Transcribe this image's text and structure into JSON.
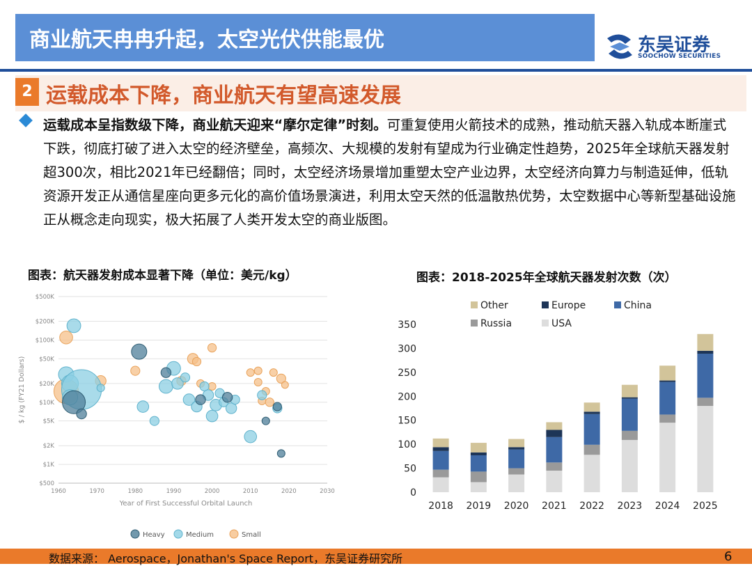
{
  "header": {
    "title": "商业航天冉冉升起，太空光伏供能最优",
    "logo_cn": "东吴证券",
    "logo_en": "SOOCHOW SECURITIES"
  },
  "section": {
    "number": "2",
    "title": "运载成本下降，商业航天有望高速发展"
  },
  "paragraph": {
    "lead": "运载成本呈指数级下降，商业航天迎来“摩尔定律”时刻。",
    "body": "可重复使用火箭技术的成熟，推动航天器入轨成本断崖式下跌，彻底打破了进入太空的经济壁垒，高频次、大规模的发射有望成为行业确定性趋势，2025年全球航天器发射超300次，相比2021年已经翻倍；同时，太空经济场景增加重塑太空产业边界，太空经济向算力与制造延伸，低轨资源开发正从通信星座向更多元化的高价值场景演进，利用太空天然的低温散热优势，太空数据中心等新型基础设施正从概念走向现实，极大拓展了人类开发太空的商业版图。"
  },
  "captions": {
    "left": "图表：航天器发射成本显著下降（单位：美元/kg）",
    "right": "图表：2018-2025年全球航天器发射次数（次）"
  },
  "footer": {
    "source": "数据来源： Aerospace，Jonathan's Space Report，东吴证券研究所",
    "page": "6"
  },
  "colors": {
    "banner": "#5b8fd6",
    "accent_orange": "#ea7a2a",
    "heavy": "#4f7f99",
    "medium": "#8ccfe3",
    "small": "#f6c08a",
    "europe": "#1d3557",
    "china": "#3e69a6",
    "russia": "#9a9a9a",
    "usa": "#dddddd",
    "other": "#d2c49a"
  },
  "chart_data": [
    {
      "type": "scatter",
      "title": "",
      "xlabel": "Year of First Successful Orbital Launch",
      "ylabel": "$ / kg (FY21 Dollars)",
      "x_ticks": [
        "1960",
        "1970",
        "1980",
        "1990",
        "2000",
        "2010",
        "2020",
        "2030"
      ],
      "y_ticks": [
        "$500",
        "$1K",
        "$2K",
        "$5K",
        "$10K",
        "$20K",
        "$50K",
        "$100K",
        "$200K",
        "$500K"
      ],
      "xlim": [
        1960,
        2030
      ],
      "ylim": [
        500,
        500000
      ],
      "y_scale": "log",
      "legend": [
        "Heavy",
        "Medium",
        "Small"
      ],
      "series": [
        {
          "name": "Heavy",
          "points": [
            {
              "x": 1964,
              "y": 10000,
              "size": 3
            },
            {
              "x": 1966,
              "y": 6500,
              "size": 1.3
            },
            {
              "x": 1981,
              "y": 65000,
              "size": 2
            },
            {
              "x": 1988,
              "y": 30000,
              "size": 1.3
            },
            {
              "x": 1997,
              "y": 11000,
              "size": 1.3
            },
            {
              "x": 2004,
              "y": 12000,
              "size": 1.3
            },
            {
              "x": 2014,
              "y": 5000,
              "size": 1
            },
            {
              "x": 2017,
              "y": 8500,
              "size": 1.1
            },
            {
              "x": 2018,
              "y": 1500,
              "size": 1
            }
          ]
        },
        {
          "name": "Medium",
          "points": [
            {
              "x": 1964,
              "y": 170000,
              "size": 1.8
            },
            {
              "x": 1962,
              "y": 28000,
              "size": 2
            },
            {
              "x": 1963,
              "y": 20000,
              "size": 2.2
            },
            {
              "x": 1966,
              "y": 16000,
              "size": 5.2
            },
            {
              "x": 1963,
              "y": 12000,
              "size": 2
            },
            {
              "x": 1971,
              "y": 17000,
              "size": 1
            },
            {
              "x": 1982,
              "y": 8500,
              "size": 1.5
            },
            {
              "x": 1985,
              "y": 5000,
              "size": 1.2
            },
            {
              "x": 1988,
              "y": 18000,
              "size": 1.8
            },
            {
              "x": 1990,
              "y": 35000,
              "size": 1.8
            },
            {
              "x": 1991,
              "y": 20000,
              "size": 1.5
            },
            {
              "x": 1993,
              "y": 25000,
              "size": 1.2
            },
            {
              "x": 1994,
              "y": 11000,
              "size": 1.5
            },
            {
              "x": 1996,
              "y": 8500,
              "size": 1.4
            },
            {
              "x": 1998,
              "y": 18000,
              "size": 1.2
            },
            {
              "x": 1999,
              "y": 13000,
              "size": 1.4
            },
            {
              "x": 2000,
              "y": 6000,
              "size": 1.5
            },
            {
              "x": 2001,
              "y": 9000,
              "size": 1.5
            },
            {
              "x": 2002,
              "y": 14000,
              "size": 1.2
            },
            {
              "x": 2003,
              "y": 10000,
              "size": 1.2
            },
            {
              "x": 2005,
              "y": 8000,
              "size": 1.4
            },
            {
              "x": 2006,
              "y": 11000,
              "size": 1.2
            },
            {
              "x": 2010,
              "y": 2800,
              "size": 1.6
            },
            {
              "x": 2013,
              "y": 13000,
              "size": 1.2
            },
            {
              "x": 2017,
              "y": 8000,
              "size": 1.2
            }
          ]
        },
        {
          "name": "Small",
          "points": [
            {
              "x": 1962,
              "y": 110000,
              "size": 1.7
            },
            {
              "x": 1962,
              "y": 15000,
              "size": 3.2
            },
            {
              "x": 1971,
              "y": 22000,
              "size": 1.4
            },
            {
              "x": 1980,
              "y": 32000,
              "size": 1.2
            },
            {
              "x": 1992,
              "y": 22000,
              "size": 1.2
            },
            {
              "x": 1995,
              "y": 50000,
              "size": 1.4
            },
            {
              "x": 1996,
              "y": 45000,
              "size": 1.1
            },
            {
              "x": 1997,
              "y": 20000,
              "size": 1
            },
            {
              "x": 2000,
              "y": 18000,
              "size": 1
            },
            {
              "x": 2000,
              "y": 75000,
              "size": 1.1
            },
            {
              "x": 2010,
              "y": 30000,
              "size": 1
            },
            {
              "x": 2012,
              "y": 32000,
              "size": 1
            },
            {
              "x": 2012,
              "y": 21000,
              "size": 1
            },
            {
              "x": 2014,
              "y": 15000,
              "size": 1
            },
            {
              "x": 2013,
              "y": 10500,
              "size": 1
            },
            {
              "x": 2015,
              "y": 10000,
              "size": 1.1
            },
            {
              "x": 2016,
              "y": 30000,
              "size": 1
            },
            {
              "x": 2018,
              "y": 24000,
              "size": 1.2
            },
            {
              "x": 2019,
              "y": 19000,
              "size": 0.9
            }
          ]
        }
      ]
    },
    {
      "type": "bar",
      "stacked": true,
      "title": "",
      "categories": [
        "2018",
        "2019",
        "2020",
        "2021",
        "2022",
        "2023",
        "2024",
        "2025"
      ],
      "ylim": [
        0,
        350
      ],
      "y_ticks": [
        0,
        50,
        100,
        150,
        200,
        250,
        300,
        350
      ],
      "legend_position": "top",
      "legend": [
        "Other",
        "Europe",
        "China",
        "Russia",
        "USA"
      ],
      "series": [
        {
          "name": "USA",
          "values": [
            31,
            21,
            37,
            45,
            78,
            109,
            145,
            180
          ]
        },
        {
          "name": "Russia",
          "values": [
            16,
            22,
            13,
            17,
            21,
            19,
            17,
            17
          ]
        },
        {
          "name": "China",
          "values": [
            39,
            34,
            39,
            53,
            64,
            67,
            68,
            92
          ]
        },
        {
          "name": "Europe",
          "values": [
            8,
            6,
            5,
            15,
            5,
            3,
            3,
            6
          ]
        },
        {
          "name": "Other",
          "values": [
            18,
            20,
            17,
            16,
            19,
            26,
            31,
            35
          ]
        }
      ]
    }
  ]
}
